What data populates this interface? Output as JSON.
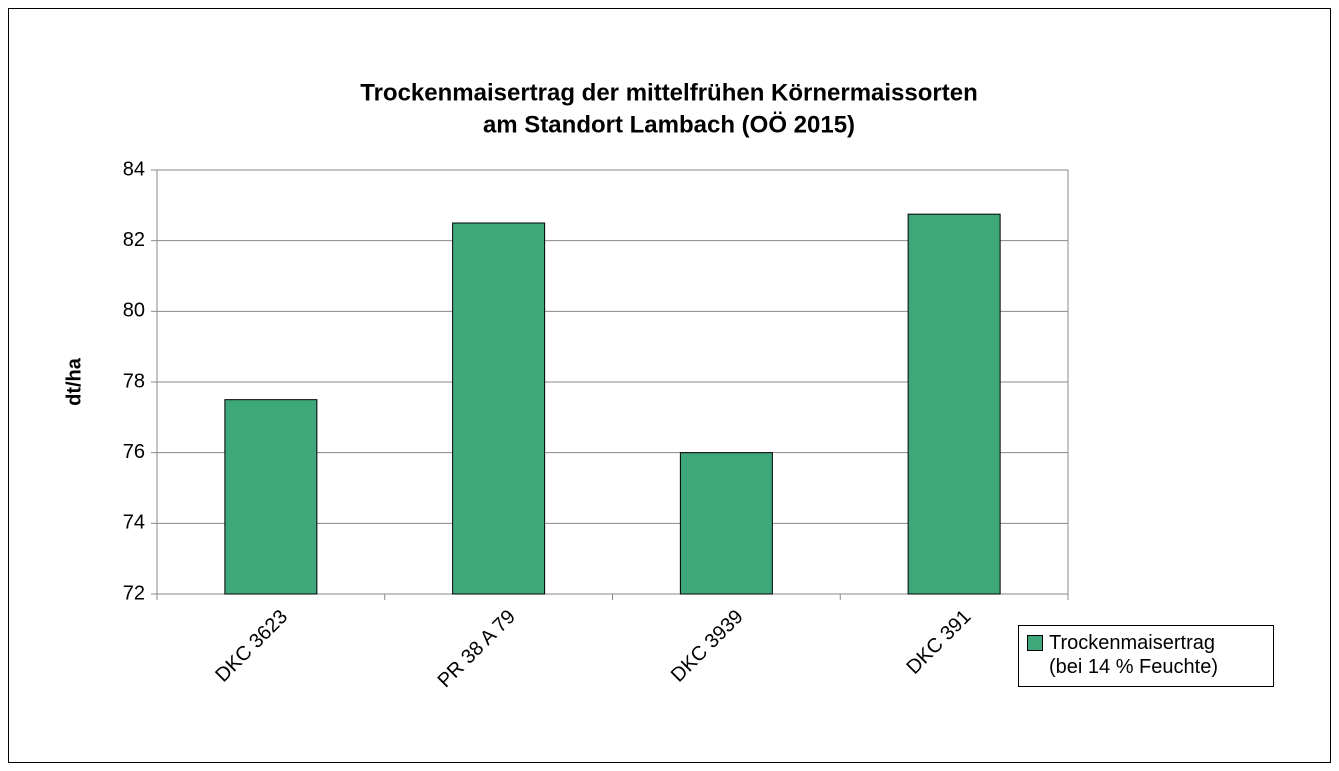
{
  "chart_data": {
    "type": "bar",
    "title": [
      "Trockenmaisertrag der mittelfrühen Körnermaissorten",
      "am Standort Lambach (OÖ 2015)"
    ],
    "y_label": "dt/ha",
    "categories": [
      "DKC 3623",
      "PR 38 A 79",
      "DKC 3939",
      "DKC 391"
    ],
    "series": [
      {
        "name": "Trockenmaisertrag (bei 14 % Feuchte)",
        "color": "#3ea87a",
        "values": [
          77.5,
          82.5,
          76.0,
          82.75
        ]
      }
    ],
    "ylim": [
      72,
      84
    ],
    "yticks": [
      72,
      74,
      76,
      78,
      80,
      82,
      84
    ],
    "grid": true,
    "legend": "right"
  }
}
